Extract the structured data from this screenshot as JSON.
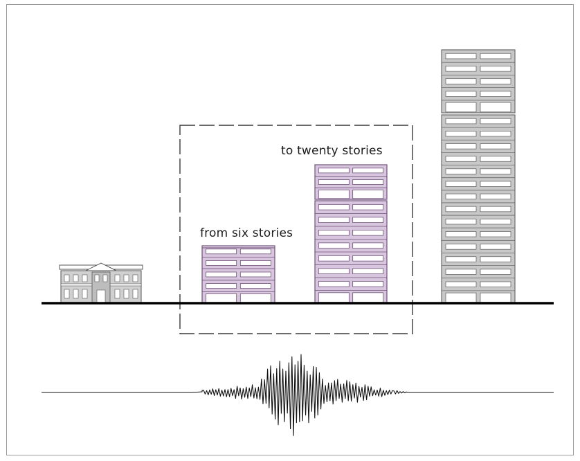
{
  "labels": {
    "from": "from six stories",
    "to": "to twenty stories"
  },
  "colors": {
    "ground": "#000000",
    "frame": "#9a9a9a",
    "midrise_fill": "#d7c6dd",
    "midrise_stroke": "#6e4f78",
    "tower_fill": "#c8c8c8",
    "tower_stroke": "#6a6a6a",
    "window_fill": "#ffffff",
    "dash_box": "#3a3a3a",
    "seismogram": "#111111"
  },
  "buildings": [
    {
      "name": "historic-low-rise-building",
      "stories": 2
    },
    {
      "name": "six-story-building",
      "stories": 6
    },
    {
      "name": "twenty-story-building",
      "stories": 20
    },
    {
      "name": "tall-tower-building",
      "stories": 20
    }
  ],
  "icons": {
    "seismogram": "seismic-waveform-icon",
    "ground": "ground-line"
  }
}
